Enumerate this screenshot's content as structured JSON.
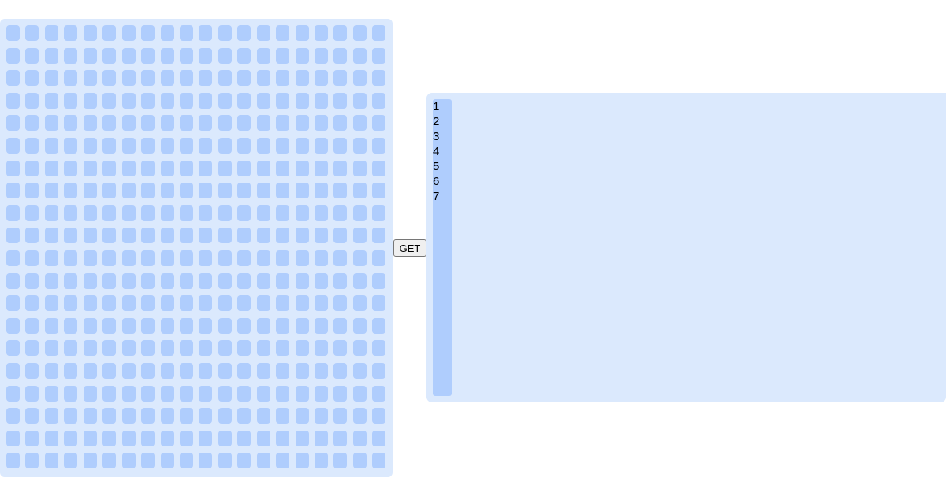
{
  "grid": {
    "rows": 20,
    "columns": 20
  },
  "button": {
    "label": "GET"
  },
  "editor": {
    "line_numbers": [
      "1",
      "2",
      "3",
      "4",
      "5",
      "6",
      "7"
    ]
  },
  "colors": {
    "panel": "#dbe9fd",
    "cell": "#afcdfd"
  }
}
